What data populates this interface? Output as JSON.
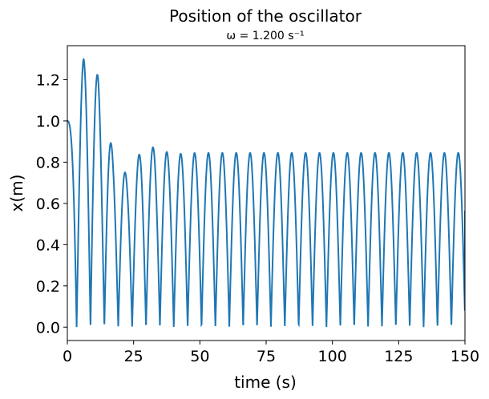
{
  "chart_data": {
    "type": "line",
    "title": "Position of the oscillator",
    "subtitle": "ω = 1.200 s⁻¹",
    "xlabel": "time (s)",
    "ylabel": "x(m)",
    "xlim": [
      0,
      150
    ],
    "ylim": [
      -0.065,
      1.365
    ],
    "x_ticks": [
      0,
      25,
      50,
      75,
      100,
      125,
      150
    ],
    "x_tick_labels": [
      "0",
      "25",
      "50",
      "75",
      "100",
      "125",
      "150"
    ],
    "y_ticks": [
      0.0,
      0.2,
      0.4,
      0.6,
      0.8,
      1.0,
      1.2
    ],
    "y_tick_labels": [
      "0.0",
      "0.2",
      "0.4",
      "0.6",
      "0.8",
      "1.0",
      "1.2"
    ],
    "grid": false,
    "line_color": "#1f77b4",
    "series": [
      {
        "period": 5.236,
        "first_zero": 3.5,
        "envelope": [
          {
            "t": 0,
            "a": 1.0
          },
          {
            "t": 6.12,
            "a": 1.3
          },
          {
            "t": 11.6,
            "a": 1.22
          },
          {
            "t": 17.35,
            "a": 0.835
          },
          {
            "t": 22.6,
            "a": 0.735
          },
          {
            "t": 27.9,
            "a": 0.855
          },
          {
            "t": 33.1,
            "a": 0.875
          },
          {
            "t": 38.3,
            "a": 0.845
          },
          {
            "t": 43.5,
            "a": 0.84
          },
          {
            "t": 48.8,
            "a": 0.845
          },
          {
            "t": 150,
            "a": 0.845
          }
        ],
        "end_value": 0.565
      }
    ]
  }
}
